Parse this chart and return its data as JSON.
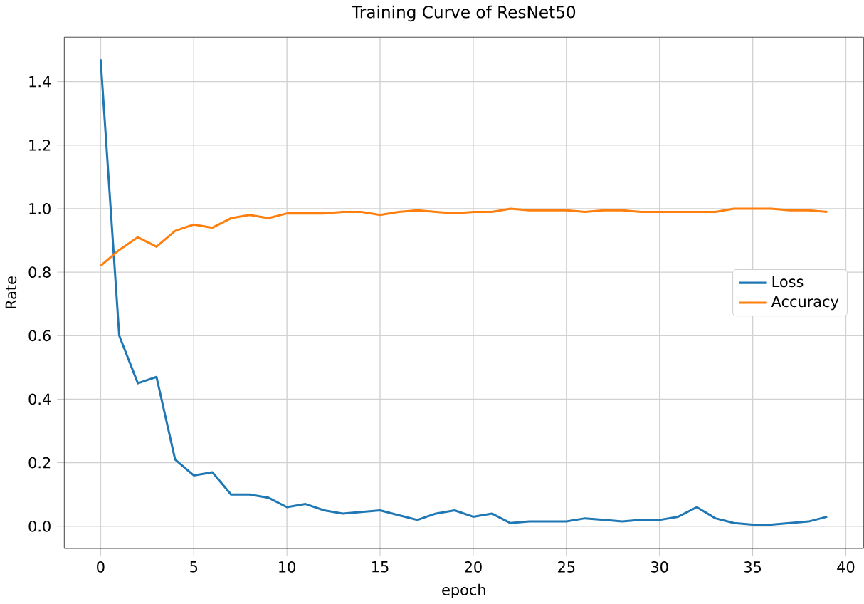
{
  "chart_data": {
    "type": "line",
    "title": "Training Curve of ResNet50",
    "xlabel": "epoch",
    "ylabel": "Rate",
    "x": [
      0,
      1,
      2,
      3,
      4,
      5,
      6,
      7,
      8,
      9,
      10,
      11,
      12,
      13,
      14,
      15,
      16,
      17,
      18,
      19,
      20,
      21,
      22,
      23,
      24,
      25,
      26,
      27,
      28,
      29,
      30,
      31,
      32,
      33,
      34,
      35,
      36,
      37,
      38,
      39
    ],
    "series": [
      {
        "name": "Loss",
        "color": "#1f77b4",
        "values": [
          1.47,
          0.6,
          0.45,
          0.47,
          0.21,
          0.16,
          0.17,
          0.1,
          0.1,
          0.09,
          0.06,
          0.07,
          0.05,
          0.04,
          0.045,
          0.05,
          0.035,
          0.02,
          0.04,
          0.05,
          0.03,
          0.04,
          0.01,
          0.015,
          0.015,
          0.015,
          0.025,
          0.02,
          0.015,
          0.02,
          0.02,
          0.03,
          0.06,
          0.025,
          0.01,
          0.005,
          0.005,
          0.01,
          0.015,
          0.03
        ]
      },
      {
        "name": "Accuracy",
        "color": "#ff7f0e",
        "values": [
          0.82,
          0.87,
          0.91,
          0.88,
          0.93,
          0.95,
          0.94,
          0.97,
          0.98,
          0.97,
          0.985,
          0.985,
          0.985,
          0.99,
          0.99,
          0.98,
          0.99,
          0.995,
          0.99,
          0.985,
          0.99,
          0.99,
          1.0,
          0.995,
          0.995,
          0.995,
          0.99,
          0.995,
          0.995,
          0.99,
          0.99,
          0.99,
          0.99,
          0.99,
          1.0,
          1.0,
          1.0,
          0.995,
          0.995,
          0.99
        ]
      }
    ],
    "xlim": [
      -1.95,
      40.95
    ],
    "ylim": [
      -0.07,
      1.54
    ],
    "xticks": [
      0,
      5,
      10,
      15,
      20,
      25,
      30,
      35,
      40
    ],
    "yticks": [
      {
        "value": 0,
        "label": "0.0"
      },
      {
        "value": 0.2,
        "label": "0.2"
      },
      {
        "value": 0.4,
        "label": "0.4"
      },
      {
        "value": 0.6,
        "label": "0.6"
      },
      {
        "value": 0.8,
        "label": "0.8"
      },
      {
        "value": 1,
        "label": "1.0"
      },
      {
        "value": 1.2,
        "label": "1.2"
      },
      {
        "value": 1.4,
        "label": "1.4"
      }
    ],
    "grid": true,
    "legend": "right",
    "marker": "none",
    "line_style": "solid"
  }
}
